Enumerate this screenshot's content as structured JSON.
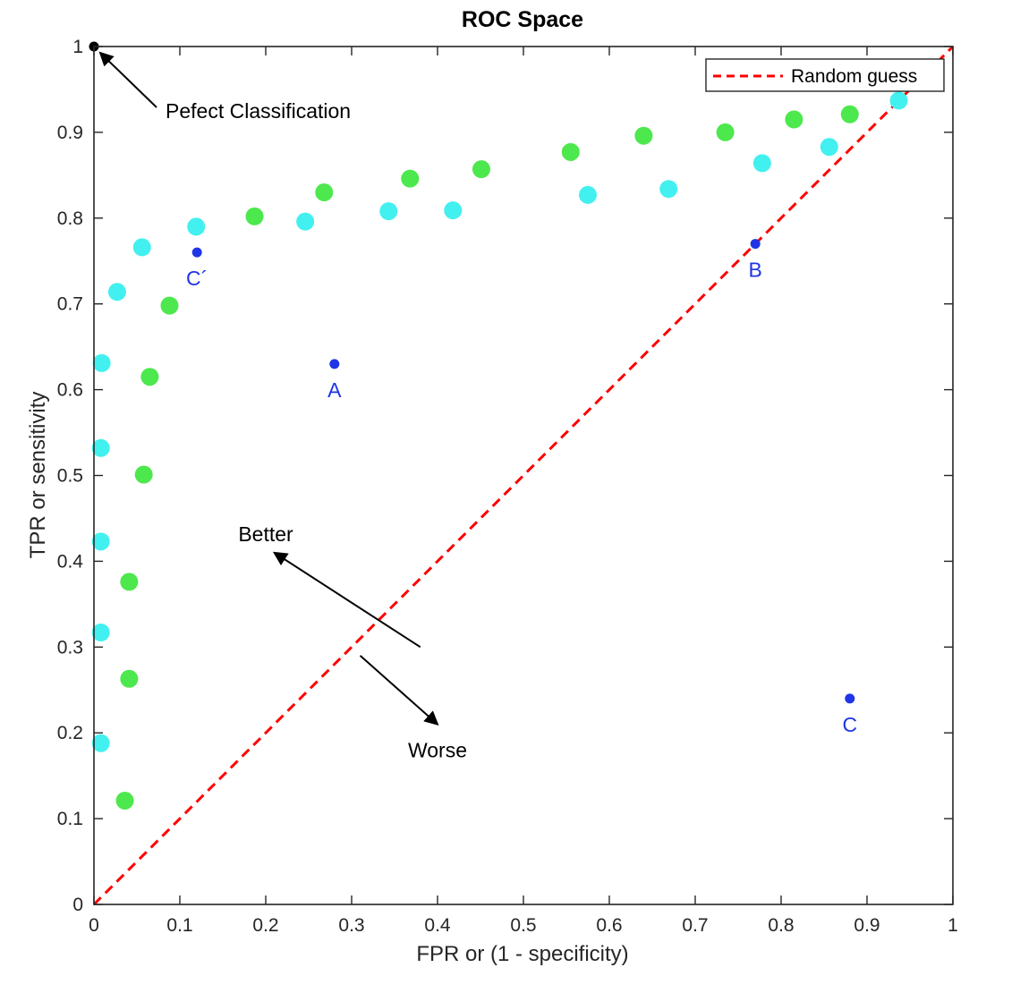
{
  "chart_data": {
    "type": "scatter",
    "title": "ROC Space",
    "xlabel": "FPR or (1 - specificity)",
    "ylabel": "TPR or sensitivity",
    "xlim": [
      0,
      1
    ],
    "ylim": [
      0,
      1
    ],
    "xticks": [
      "0",
      "0.1",
      "0.2",
      "0.3",
      "0.4",
      "0.5",
      "0.6",
      "0.7",
      "0.8",
      "0.9",
      "1"
    ],
    "yticks": [
      "0",
      "0.1",
      "0.2",
      "0.3",
      "0.4",
      "0.5",
      "0.6",
      "0.7",
      "0.8",
      "0.9",
      "1"
    ],
    "grid": false,
    "legend": {
      "placement": "top-right",
      "entries": [
        {
          "label": "Random guess",
          "color": "#ff0000",
          "style": "dashed"
        }
      ]
    },
    "reference_line": {
      "x": [
        0,
        1
      ],
      "y": [
        0,
        1
      ],
      "color": "#ff0000",
      "style": "dashed"
    },
    "series": [
      {
        "color": "#4de84d",
        "points": [
          {
            "x": 0.036,
            "y": 0.121
          },
          {
            "x": 0.041,
            "y": 0.263
          },
          {
            "x": 0.041,
            "y": 0.376
          },
          {
            "x": 0.058,
            "y": 0.501
          },
          {
            "x": 0.065,
            "y": 0.615
          },
          {
            "x": 0.088,
            "y": 0.698
          },
          {
            "x": 0.187,
            "y": 0.802
          },
          {
            "x": 0.268,
            "y": 0.83
          },
          {
            "x": 0.368,
            "y": 0.846
          },
          {
            "x": 0.451,
            "y": 0.857
          },
          {
            "x": 0.555,
            "y": 0.877
          },
          {
            "x": 0.64,
            "y": 0.896
          },
          {
            "x": 0.735,
            "y": 0.9
          },
          {
            "x": 0.815,
            "y": 0.915
          },
          {
            "x": 0.88,
            "y": 0.921
          }
        ]
      },
      {
        "color": "#43f0f0",
        "points": [
          {
            "x": 0.008,
            "y": 0.188
          },
          {
            "x": 0.008,
            "y": 0.317
          },
          {
            "x": 0.008,
            "y": 0.423
          },
          {
            "x": 0.008,
            "y": 0.532
          },
          {
            "x": 0.009,
            "y": 0.631
          },
          {
            "x": 0.027,
            "y": 0.714
          },
          {
            "x": 0.056,
            "y": 0.766
          },
          {
            "x": 0.119,
            "y": 0.79
          },
          {
            "x": 0.246,
            "y": 0.796
          },
          {
            "x": 0.343,
            "y": 0.808
          },
          {
            "x": 0.418,
            "y": 0.809
          },
          {
            "x": 0.575,
            "y": 0.827
          },
          {
            "x": 0.669,
            "y": 0.834
          },
          {
            "x": 0.778,
            "y": 0.864
          },
          {
            "x": 0.856,
            "y": 0.883
          },
          {
            "x": 0.937,
            "y": 0.937
          }
        ]
      }
    ],
    "labeled_points": [
      {
        "label": "A",
        "x": 0.28,
        "y": 0.63,
        "color": "#1f35e6"
      },
      {
        "label": "B",
        "x": 0.77,
        "y": 0.77,
        "color": "#1f35e6"
      },
      {
        "label": "C",
        "x": 0.88,
        "y": 0.24,
        "color": "#1f35e6"
      },
      {
        "label": "C´",
        "x": 0.12,
        "y": 0.76,
        "color": "#1f35e6"
      }
    ],
    "annotations": [
      {
        "text": "Pefect Classification",
        "point": {
          "x": 0,
          "y": 1
        }
      },
      {
        "text": "Better",
        "arrow_from": {
          "x": 0.38,
          "y": 0.3
        },
        "arrow_to": {
          "x": 0.21,
          "y": 0.41
        }
      },
      {
        "text": "Worse",
        "arrow_from": {
          "x": 0.31,
          "y": 0.29
        },
        "arrow_to": {
          "x": 0.4,
          "y": 0.21
        }
      }
    ]
  }
}
